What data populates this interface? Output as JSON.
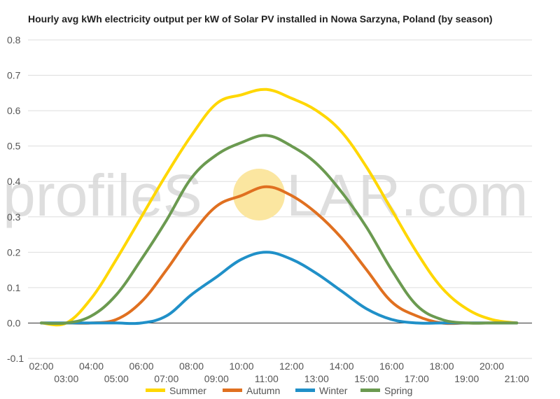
{
  "watermark": {
    "left": "profileS",
    "right": "LAR.com",
    "sun_color": "#fbe6a0"
  },
  "chart_data": {
    "type": "line",
    "title": "Hourly avg kWh electricity output per kW of Solar PV installed in Nowa Sarzyna, Poland (by season)",
    "xlabel": "",
    "ylabel": "",
    "x": [
      "02:00",
      "03:00",
      "04:00",
      "05:00",
      "06:00",
      "07:00",
      "08:00",
      "09:00",
      "10:00",
      "11:00",
      "12:00",
      "13:00",
      "14:00",
      "15:00",
      "16:00",
      "17:00",
      "18:00",
      "19:00",
      "20:00",
      "21:00"
    ],
    "x_tick_labels_top": [
      "02:00",
      "04:00",
      "06:00",
      "08:00",
      "10:00",
      "12:00",
      "14:00",
      "16:00",
      "18:00",
      "20:00"
    ],
    "x_tick_labels_bottom": [
      "03:00",
      "05:00",
      "07:00",
      "09:00",
      "11:00",
      "13:00",
      "15:00",
      "17:00",
      "19:00",
      "21:00"
    ],
    "ylim": [
      -0.1,
      0.8
    ],
    "y_ticks": [
      "-0.1",
      "0.0",
      "0.1",
      "0.2",
      "0.3",
      "0.4",
      "0.5",
      "0.6",
      "0.7",
      "0.8"
    ],
    "grid": true,
    "legend_position": "bottom",
    "series": [
      {
        "name": "Summer",
        "color": "#ffd700",
        "values": [
          0.0,
          0.0,
          0.07,
          0.18,
          0.3,
          0.42,
          0.53,
          0.62,
          0.645,
          0.66,
          0.635,
          0.6,
          0.54,
          0.44,
          0.32,
          0.2,
          0.1,
          0.04,
          0.01,
          0.0
        ]
      },
      {
        "name": "Autumn",
        "color": "#e07020",
        "values": [
          0.0,
          0.0,
          0.0,
          0.01,
          0.06,
          0.15,
          0.25,
          0.33,
          0.36,
          0.385,
          0.36,
          0.31,
          0.24,
          0.15,
          0.06,
          0.02,
          0.0,
          0.0,
          0.0,
          0.0
        ]
      },
      {
        "name": "Winter",
        "color": "#2090c8",
        "values": [
          0.0,
          0.0,
          0.0,
          0.0,
          0.0,
          0.02,
          0.08,
          0.13,
          0.18,
          0.2,
          0.18,
          0.14,
          0.09,
          0.04,
          0.01,
          0.0,
          0.0,
          0.0,
          0.0,
          0.0
        ]
      },
      {
        "name": "Spring",
        "color": "#6b9a50",
        "values": [
          0.0,
          0.0,
          0.02,
          0.08,
          0.18,
          0.29,
          0.41,
          0.475,
          0.51,
          0.53,
          0.5,
          0.45,
          0.37,
          0.27,
          0.15,
          0.05,
          0.01,
          0.0,
          0.0,
          0.0
        ]
      }
    ]
  }
}
